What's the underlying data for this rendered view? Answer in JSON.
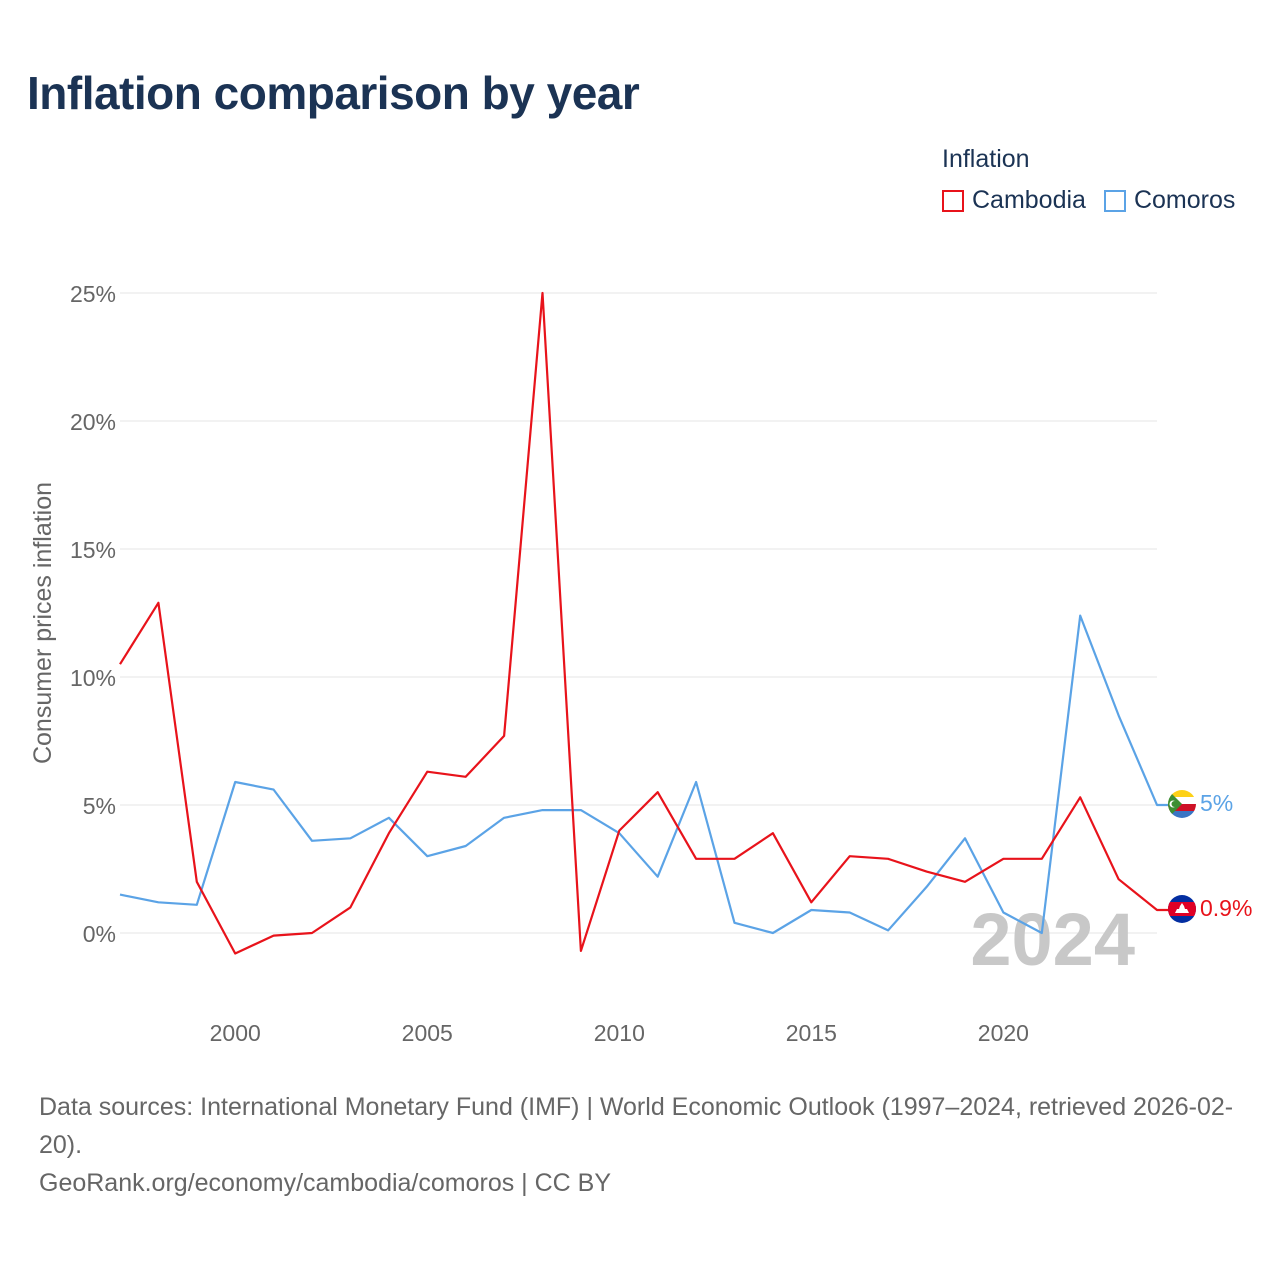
{
  "title": "Inflation comparison by year",
  "legend": {
    "title": "Inflation",
    "items": [
      {
        "label": "Cambodia",
        "color": "#e8131b"
      },
      {
        "label": "Comoros",
        "color": "#5ba3e6"
      }
    ]
  },
  "watermark_year": "2024",
  "end_labels": {
    "comoros": "5%",
    "cambodia": "0.9%"
  },
  "source": {
    "line1": "Data sources: International Monetary Fund (IMF) | World Economic Outlook (1997–2024, retrieved 2026-02-20).",
    "line2": "GeoRank.org/economy/cambodia/comoros | CC BY"
  },
  "colors": {
    "title": "#1b3354",
    "cambodia": "#e8131b",
    "comoros": "#5ba3e6",
    "axis_text": "#666666",
    "grid": "#e6e6e6",
    "watermark": "#c8c8c8"
  },
  "chart_data": {
    "type": "line",
    "title": "Inflation comparison by year",
    "xlabel": "",
    "ylabel": "Consumer prices inflation",
    "xlim": [
      1997,
      2024
    ],
    "ylim": [
      -2,
      25
    ],
    "x_ticks": [
      2000,
      2005,
      2010,
      2015,
      2020
    ],
    "x_tick_labels": [
      "2000",
      "2005",
      "2010",
      "2015",
      "2020"
    ],
    "y_ticks": [
      0,
      5,
      10,
      15,
      20,
      25
    ],
    "y_tick_labels": [
      "0%",
      "5%",
      "10%",
      "15%",
      "20%",
      "25%"
    ],
    "grid": true,
    "legend_position": "top-right",
    "x": [
      1997,
      1998,
      1999,
      2000,
      2001,
      2002,
      2003,
      2004,
      2005,
      2006,
      2007,
      2008,
      2009,
      2010,
      2011,
      2012,
      2013,
      2014,
      2015,
      2016,
      2017,
      2018,
      2019,
      2020,
      2021,
      2022,
      2023,
      2024
    ],
    "series": [
      {
        "name": "Cambodia",
        "color": "#e8131b",
        "values": [
          10.5,
          12.9,
          2.0,
          -0.8,
          -0.1,
          0.0,
          1.0,
          3.9,
          6.3,
          6.1,
          7.7,
          25.0,
          -0.7,
          4.0,
          5.5,
          2.9,
          2.9,
          3.9,
          1.2,
          3.0,
          2.9,
          2.4,
          2.0,
          2.9,
          2.9,
          5.3,
          2.1,
          0.9
        ]
      },
      {
        "name": "Comoros",
        "color": "#5ba3e6",
        "values": [
          1.5,
          1.2,
          1.1,
          5.9,
          5.6,
          3.6,
          3.7,
          4.5,
          3.0,
          3.4,
          4.5,
          4.8,
          4.8,
          3.9,
          2.2,
          5.9,
          0.4,
          0.0,
          0.9,
          0.8,
          0.1,
          1.8,
          3.7,
          0.8,
          0.0,
          12.4,
          8.5,
          5.0
        ]
      }
    ]
  }
}
